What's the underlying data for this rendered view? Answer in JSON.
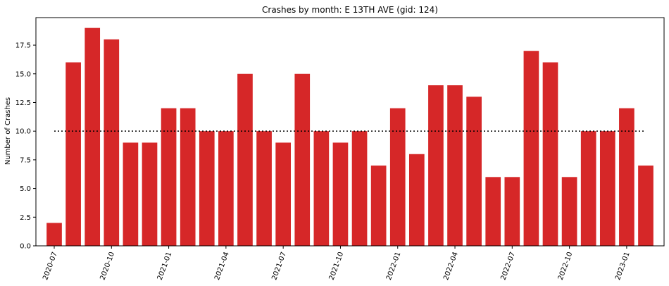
{
  "chart_data": {
    "type": "bar",
    "title": "Crashes by month: E 13TH AVE (gid: 124)",
    "ylabel": "Number of Crashes",
    "xlabel": "",
    "ylim": [
      0,
      19.9
    ],
    "yticks": [
      0.0,
      2.5,
      5.0,
      7.5,
      10.0,
      12.5,
      15.0,
      17.5
    ],
    "ytick_labels": [
      "0.0",
      "2.5",
      "5.0",
      "7.5",
      "10.0",
      "12.5",
      "15.0",
      "17.5"
    ],
    "categories": [
      "2020-07",
      "2020-08",
      "2020-09",
      "2020-10",
      "2020-11",
      "2020-12",
      "2021-01",
      "2021-02",
      "2021-03",
      "2021-04",
      "2021-05",
      "2021-06",
      "2021-07",
      "2021-08",
      "2021-09",
      "2021-10",
      "2021-11",
      "2021-12",
      "2022-01",
      "2022-02",
      "2022-03",
      "2022-04",
      "2022-05",
      "2022-06",
      "2022-07",
      "2022-08",
      "2022-09",
      "2022-10",
      "2022-11",
      "2022-12",
      "2023-01",
      "2023-02"
    ],
    "values": [
      2,
      16,
      19,
      18,
      9,
      9,
      12,
      12,
      10,
      10,
      15,
      10,
      9,
      15,
      10,
      9,
      10,
      7,
      12,
      8,
      14,
      14,
      13,
      6,
      6,
      17,
      16,
      6,
      10,
      10,
      12,
      7
    ],
    "xtick_labels": [
      "2020-07",
      "2020-10",
      "2021-01",
      "2021-04",
      "2021-07",
      "2021-10",
      "2022-01",
      "2022-04",
      "2022-07",
      "2022-10",
      "2023-01"
    ],
    "reference_line": 10,
    "grid": false,
    "colors": {
      "bar": "#d62728",
      "reference_line": "#000000",
      "axis": "#000000"
    }
  }
}
